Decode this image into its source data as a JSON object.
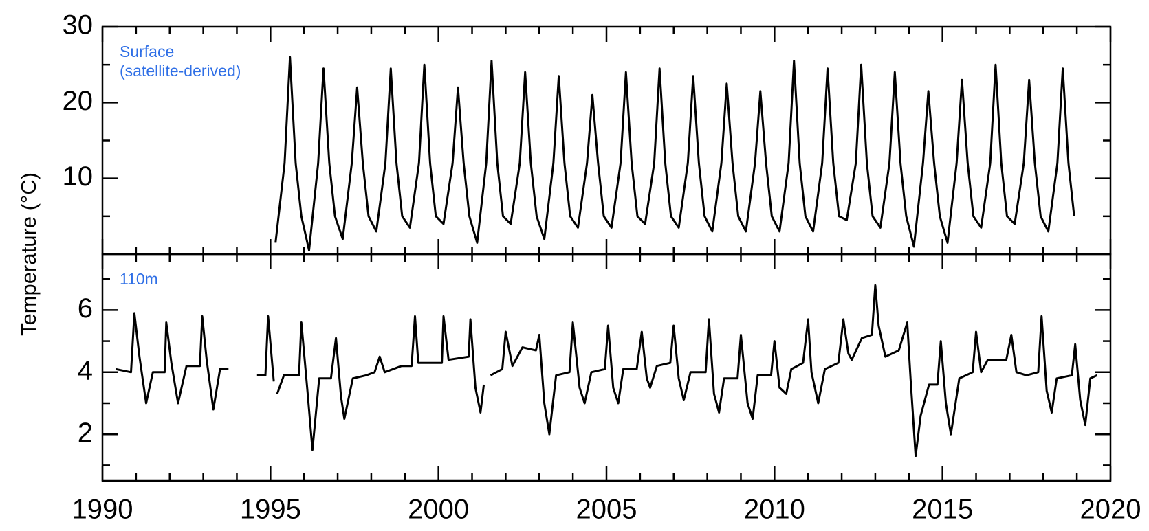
{
  "chart_data": [
    {
      "type": "line",
      "ylabel": "Temperature (°C)",
      "annotation": [
        "Surface",
        "(satellite-derived)"
      ],
      "xlim": [
        1990,
        2020
      ],
      "ylim": [
        0,
        30
      ],
      "yticks": [
        10,
        20,
        30
      ],
      "yminorticks": [
        5,
        15,
        25
      ],
      "series": [
        {
          "color": "#000000",
          "x": [
            1995.15,
            1995.42,
            1995.58,
            1995.75,
            1995.92,
            1996.15,
            1996.42,
            1996.58,
            1996.75,
            1996.92,
            1997.15,
            1997.42,
            1997.58,
            1997.75,
            1997.92,
            1998.15,
            1998.42,
            1998.58,
            1998.75,
            1998.92,
            1999.15,
            1999.42,
            1999.58,
            1999.75,
            1999.92,
            2000.15,
            2000.42,
            2000.58,
            2000.75,
            2000.92,
            2001.15,
            2001.42,
            2001.58,
            2001.75,
            2001.92,
            2002.15,
            2002.42,
            2002.58,
            2002.75,
            2002.92,
            2003.15,
            2003.42,
            2003.58,
            2003.75,
            2003.92,
            2004.15,
            2004.42,
            2004.58,
            2004.75,
            2004.92,
            2005.15,
            2005.42,
            2005.58,
            2005.75,
            2005.92,
            2006.15,
            2006.42,
            2006.58,
            2006.75,
            2006.92,
            2007.15,
            2007.42,
            2007.58,
            2007.75,
            2007.92,
            2008.15,
            2008.42,
            2008.58,
            2008.75,
            2008.92,
            2009.15,
            2009.42,
            2009.58,
            2009.75,
            2009.92,
            2010.15,
            2010.42,
            2010.58,
            2010.75,
            2010.92,
            2011.15,
            2011.42,
            2011.58,
            2011.75,
            2011.92,
            2012.15,
            2012.42,
            2012.58,
            2012.75,
            2012.92,
            2013.15,
            2013.42,
            2013.58,
            2013.75,
            2013.92,
            2014.15,
            2014.42,
            2014.58,
            2014.75,
            2014.92,
            2015.15,
            2015.42,
            2015.58,
            2015.75,
            2015.92,
            2016.15,
            2016.42,
            2016.58,
            2016.75,
            2016.92,
            2017.15,
            2017.42,
            2017.58,
            2017.75,
            2017.92,
            2018.15,
            2018.42,
            2018.58,
            2018.75,
            2018.92
          ],
          "values": [
            1.5,
            12,
            26,
            12,
            5,
            0.5,
            12,
            24.5,
            12,
            5,
            2,
            12,
            22,
            12,
            5,
            3,
            12,
            24.5,
            12,
            5,
            3.5,
            12,
            25,
            12,
            5,
            4,
            12,
            22,
            12,
            5,
            1.5,
            12,
            25.5,
            12,
            5,
            4,
            12,
            24,
            12,
            5,
            2,
            12,
            23.5,
            12,
            5,
            3.5,
            12,
            21,
            12,
            5,
            3.5,
            12,
            24,
            12,
            5,
            4,
            12,
            24.5,
            12,
            5,
            3.5,
            12,
            23.5,
            12,
            5,
            3,
            12,
            22.5,
            12,
            5,
            3,
            12,
            21.5,
            12,
            5,
            3,
            12,
            25.5,
            12,
            5,
            3,
            12,
            24.5,
            12,
            5,
            4.5,
            12,
            25,
            12,
            5,
            3.5,
            12,
            24,
            12,
            5,
            1,
            12,
            21.5,
            12,
            5,
            1.5,
            12,
            23,
            12,
            5,
            3.5,
            12,
            25,
            12,
            5,
            4,
            12,
            23,
            12,
            5,
            3,
            12,
            24.5,
            12,
            5
          ]
        }
      ]
    },
    {
      "type": "line",
      "annotation": [
        "110m"
      ],
      "xlim": [
        1990,
        2020
      ],
      "xticks": [
        1990,
        1995,
        2000,
        2005,
        2010,
        2015,
        2020
      ],
      "xminorticks": [
        1991,
        1992,
        1993,
        1994,
        1996,
        1997,
        1998,
        1999,
        2001,
        2002,
        2003,
        2004,
        2006,
        2007,
        2008,
        2009,
        2011,
        2012,
        2013,
        2014,
        2016,
        2017,
        2018,
        2019
      ],
      "ylim": [
        0.5,
        7.8
      ],
      "yticks": [
        2,
        4,
        6
      ],
      "yminorticks": [
        1,
        3,
        5,
        7
      ],
      "series": [
        {
          "color": "#000000",
          "x": [
            1990.4,
            1990.85,
            1990.95,
            1991.1,
            1991.3,
            1991.5,
            1991.85,
            1991.9,
            1992.05,
            1992.25,
            1992.5,
            1992.9,
            1992.97,
            1993.1,
            1993.3,
            1993.5,
            1993.75,
            1994.2,
            1994.6,
            1994.85,
            1994.93,
            1995.05,
            1995.1,
            1995.15,
            1995.2,
            1995.4,
            1995.85,
            1995.92,
            1996.1,
            1996.25,
            1996.45,
            1996.8,
            1996.95,
            1997.1,
            1997.2,
            1997.45,
            1997.85,
            1998.1,
            1998.25,
            1998.4,
            1998.9,
            1999.2,
            1999.3,
            1999.4,
            1999.9,
            2000.1,
            2000.15,
            2000.3,
            2000.9,
            2000.95,
            2001.1,
            2001.25,
            2001.35,
            2001.45,
            2001.55,
            2001.9,
            2002.0,
            2002.2,
            2002.5,
            2002.9,
            2003.0,
            2003.15,
            2003.3,
            2003.5,
            2003.9,
            2004.0,
            2004.2,
            2004.35,
            2004.55,
            2004.95,
            2005.05,
            2005.2,
            2005.35,
            2005.5,
            2005.9,
            2006.05,
            2006.2,
            2006.3,
            2006.5,
            2006.9,
            2007.0,
            2007.15,
            2007.3,
            2007.5,
            2007.95,
            2008.05,
            2008.2,
            2008.35,
            2008.5,
            2008.9,
            2009.0,
            2009.2,
            2009.35,
            2009.5,
            2009.9,
            2010.0,
            2010.15,
            2010.35,
            2010.5,
            2010.85,
            2011.0,
            2011.1,
            2011.3,
            2011.5,
            2011.9,
            2012.05,
            2012.2,
            2012.3,
            2012.6,
            2012.9,
            2013.0,
            2013.1,
            2013.3,
            2013.7,
            2013.95,
            2014.05,
            2014.2,
            2014.35,
            2014.6,
            2014.85,
            2014.95,
            2015.1,
            2015.25,
            2015.5,
            2015.9,
            2016.0,
            2016.15,
            2016.35,
            2016.9,
            2017.05,
            2017.2,
            2017.5,
            2017.85,
            2017.95,
            2018.1,
            2018.25,
            2018.4,
            2018.85,
            2018.95,
            2019.1,
            2019.25,
            2019.4,
            2019.6
          ],
          "values": [
            4.1,
            4.0,
            5.9,
            4.5,
            3.0,
            4.0,
            4.0,
            5.6,
            4.3,
            3.0,
            4.2,
            4.2,
            5.8,
            4.4,
            2.8,
            4.1,
            4.1,
            null,
            3.9,
            3.9,
            5.8,
            4.3,
            3.7,
            null,
            3.3,
            3.9,
            3.9,
            5.6,
            3.4,
            1.5,
            3.8,
            3.8,
            5.1,
            3.2,
            2.5,
            3.8,
            3.9,
            4.0,
            4.5,
            4.0,
            4.2,
            4.2,
            5.8,
            4.3,
            4.3,
            4.3,
            5.8,
            4.4,
            4.5,
            5.7,
            3.5,
            2.7,
            3.6,
            null,
            3.9,
            4.1,
            5.3,
            4.2,
            4.8,
            4.7,
            5.2,
            3.0,
            2.0,
            3.9,
            4.0,
            5.6,
            3.5,
            3.0,
            4.0,
            4.1,
            5.5,
            3.5,
            3.0,
            4.1,
            4.1,
            5.3,
            3.8,
            3.5,
            4.2,
            4.3,
            5.5,
            3.8,
            3.1,
            4.0,
            4.0,
            5.7,
            3.3,
            2.7,
            3.8,
            3.8,
            5.2,
            3.0,
            2.5,
            3.9,
            3.9,
            5.0,
            3.5,
            3.3,
            4.1,
            4.3,
            5.7,
            4.0,
            3.0,
            4.1,
            4.3,
            5.7,
            4.6,
            4.4,
            5.1,
            5.2,
            6.8,
            5.5,
            4.5,
            4.7,
            5.6,
            3.8,
            1.3,
            2.6,
            3.6,
            3.6,
            5.0,
            3.0,
            2.0,
            3.8,
            4.0,
            5.3,
            4.0,
            4.4,
            4.4,
            5.2,
            4.0,
            3.9,
            4.0,
            5.8,
            3.4,
            2.7,
            3.8,
            3.9,
            4.9,
            3.1,
            2.3,
            3.8,
            3.9
          ]
        }
      ]
    }
  ]
}
